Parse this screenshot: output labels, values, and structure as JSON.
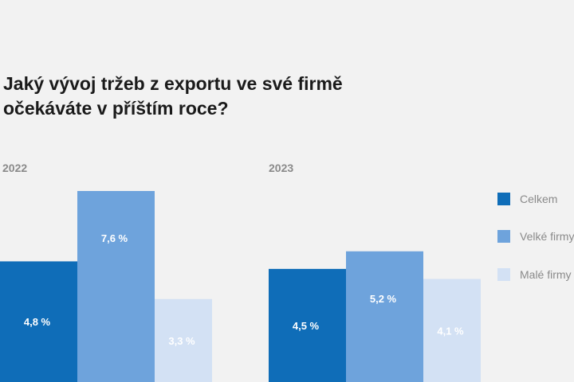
{
  "chart_data": {
    "type": "bar",
    "title": "Jaký vývoj tržeb z exportu ve své firmě očekáváte v příštím roce?",
    "categories": [
      "2022",
      "2023"
    ],
    "series": [
      {
        "name": "Celkem",
        "values": [
          4.8,
          4.5
        ],
        "labels": [
          "4,8 %",
          "4,5 %"
        ],
        "color": "#0f6db8"
      },
      {
        "name": "Velké firmy",
        "values": [
          7.6,
          5.2
        ],
        "labels": [
          "7,6 %",
          "5,2 %"
        ],
        "color": "#6ea3dc"
      },
      {
        "name": "Malé firmy",
        "values": [
          3.3,
          4.1
        ],
        "labels": [
          "3,3 %",
          "4,1 %"
        ],
        "color": "#d3e1f4"
      }
    ],
    "ylim": [
      0,
      7.6
    ],
    "grid": false,
    "legend": "right"
  }
}
